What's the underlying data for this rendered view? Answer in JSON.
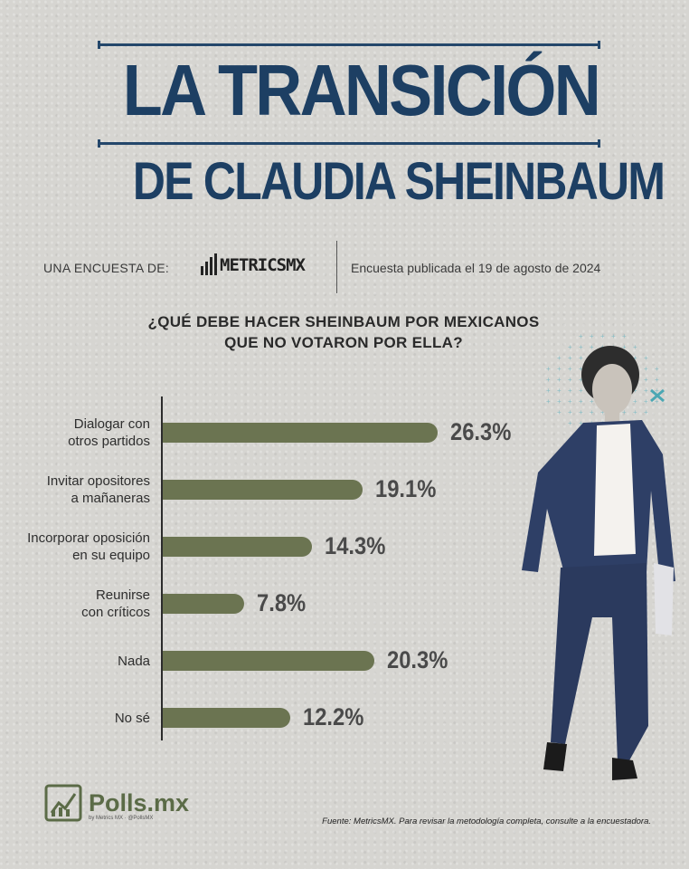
{
  "header": {
    "title_line1": "LA TRANSICIÓN",
    "title_line2": "DE CLAUDIA SHEINBAUM",
    "byline": "UNA ENCUESTA DE:",
    "pollster_logo": "METRICSMX",
    "published": "Encuesta publicada el 19 de agosto de 2024"
  },
  "question": {
    "line1": "¿QUÉ DEBE HACER SHEINBAUM POR MEXICANOS",
    "line2": "QUE NO VOTARON POR ELLA?"
  },
  "chart_data": {
    "type": "bar",
    "orientation": "horizontal",
    "categories": [
      [
        "Dialogar con",
        "otros partidos"
      ],
      [
        "Invitar opositores",
        "a mañaneras"
      ],
      [
        "Incorporar oposición",
        "en su equipo"
      ],
      [
        "Reunirse",
        "con críticos"
      ],
      [
        "Nada"
      ],
      [
        "No sé"
      ]
    ],
    "values": [
      26.3,
      19.1,
      14.3,
      7.8,
      20.3,
      12.2
    ],
    "labels": [
      "26.3%",
      "19.1%",
      "14.3%",
      "7.8%",
      "20.3%",
      "12.2%"
    ],
    "bar_color": "#6b7451",
    "grid": false
  },
  "footer": {
    "brand": "Polls.mx",
    "brand_sub": "by Metrics MX · @PollsMX",
    "source": "Fuente: MetricsMX. Para revisar la metodología completa, consulte a la encuestadora."
  },
  "colors": {
    "title": "#1d3f63",
    "bar": "#6b7451",
    "background": "#d6d5d1",
    "brand": "#5b6b47"
  }
}
